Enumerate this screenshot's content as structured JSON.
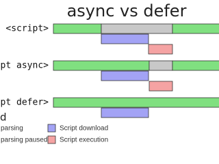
{
  "title": "async vs defer",
  "rows": [
    {
      "label": "<script>"
    },
    {
      "label": "pt async>"
    },
    {
      "label": "pt defer>"
    }
  ],
  "legend": {
    "title": "d",
    "items": [
      "parsing",
      "parsing paused",
      "Script download",
      "Script execution"
    ]
  }
}
